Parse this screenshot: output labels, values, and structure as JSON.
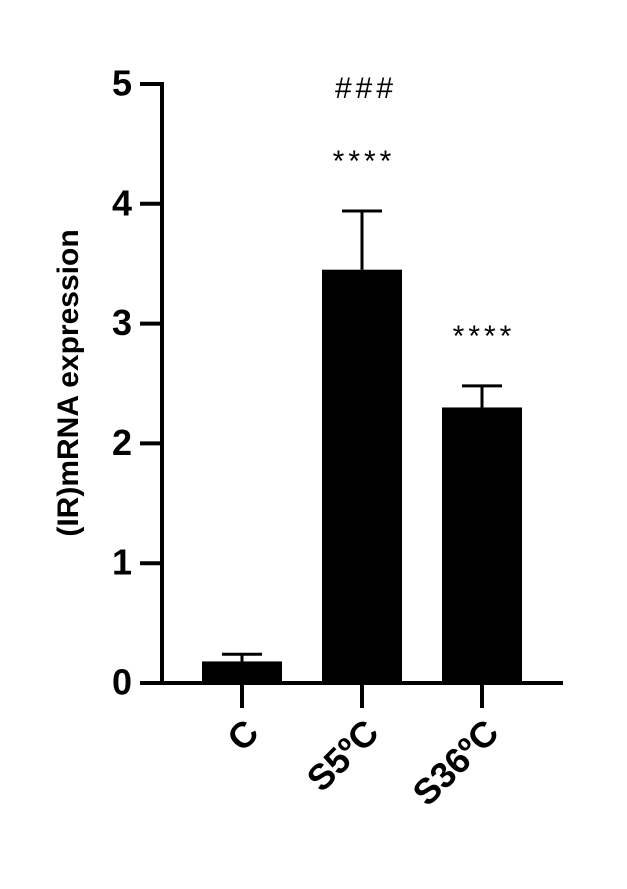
{
  "chart_data": {
    "type": "bar",
    "y_label": "(IR)mRNA expression",
    "categories": [
      "C",
      "S5ºC",
      "S36ºC"
    ],
    "values": [
      0.18,
      3.45,
      2.3
    ],
    "errors": [
      0.06,
      0.49,
      0.18
    ],
    "color": "#000000",
    "ylim": [
      0,
      5
    ],
    "yticks": [
      0,
      1,
      2,
      3,
      4,
      5
    ],
    "significance_labels": [
      null,
      "****",
      "****"
    ],
    "group_label": "###"
  }
}
